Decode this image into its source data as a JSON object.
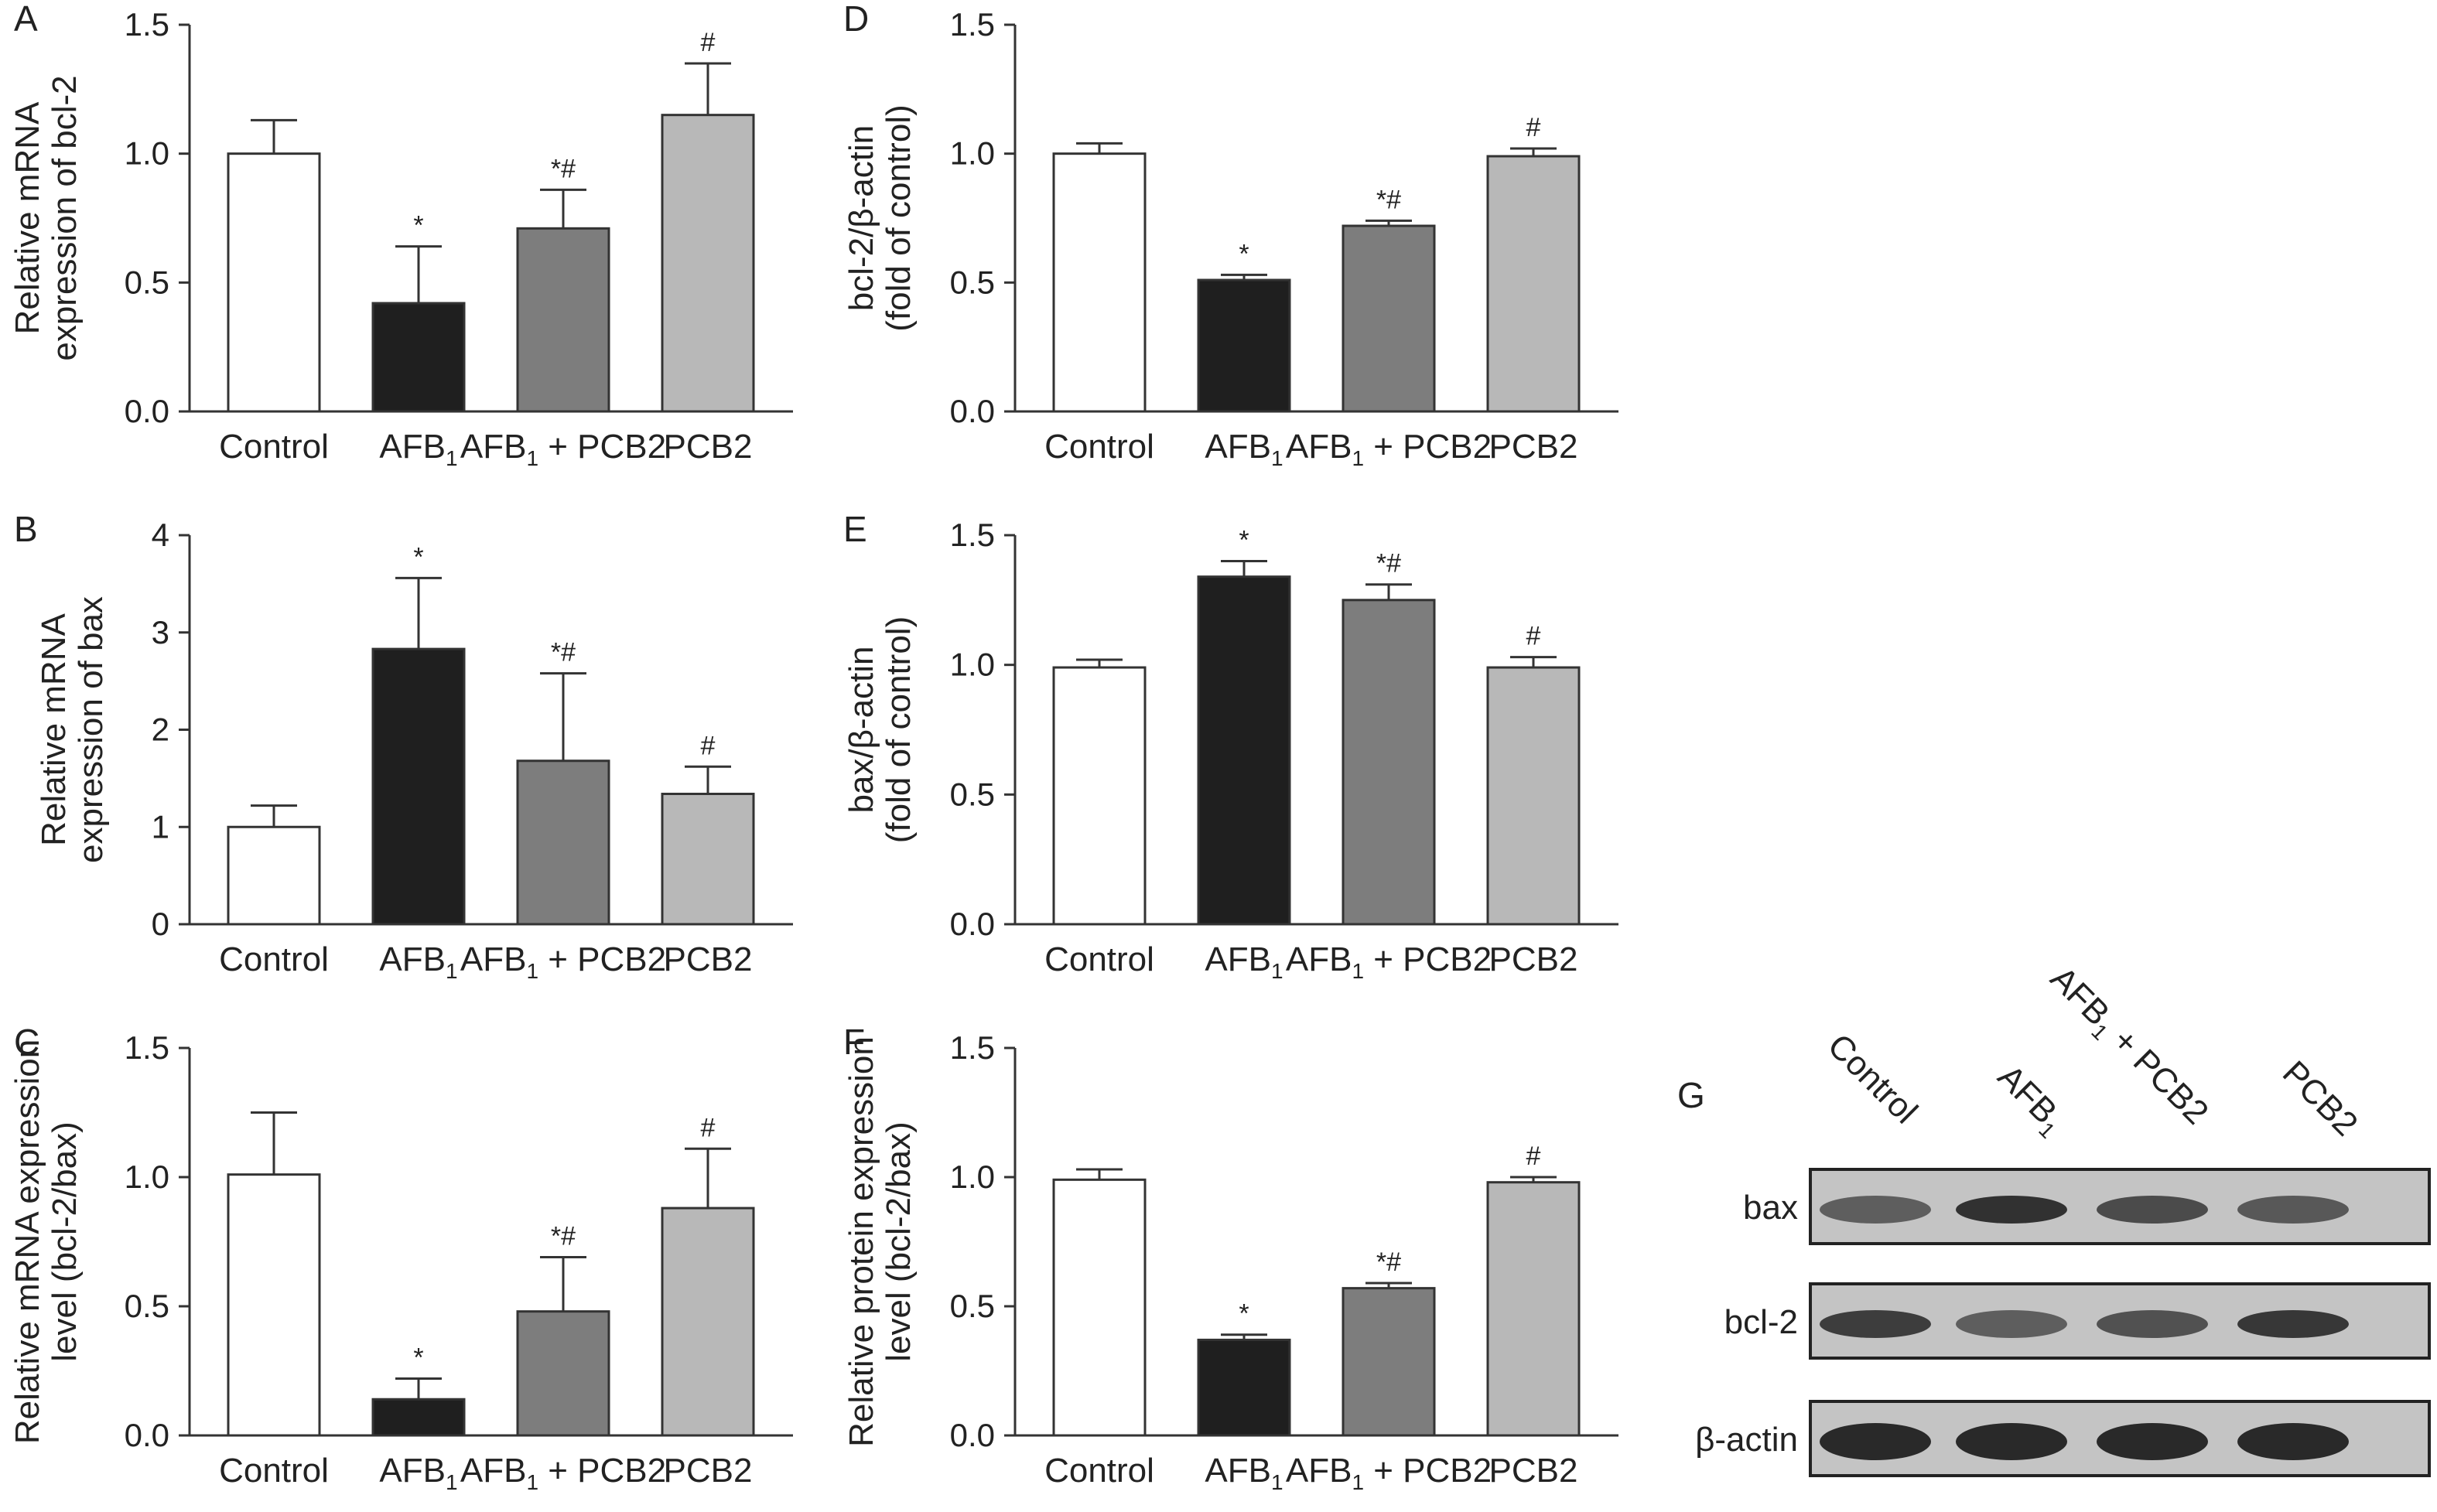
{
  "colors": {
    "Control": "#ffffff",
    "AFB1": "#1f1f1f",
    "AFB1 + PCB2": "#7d7d7d",
    "PCB2": "#b8b8b8",
    "stroke": "#333333"
  },
  "chart_data": [
    {
      "id": "A",
      "panel_label": "A",
      "type": "bar",
      "ylabel_lines": [
        "Relative mRNA",
        "expression of bcl-2"
      ],
      "categories": [
        "Control",
        "AFB1",
        "AFB1 + PCB2",
        "PCB2"
      ],
      "values": [
        1.0,
        0.42,
        0.71,
        1.15
      ],
      "errors": [
        0.13,
        0.22,
        0.15,
        0.2
      ],
      "significance": [
        "",
        "*",
        "*#",
        "#"
      ],
      "ylim": [
        0,
        1.5
      ],
      "yticks": [
        "0.0",
        "0.5",
        "1.0",
        "1.5"
      ]
    },
    {
      "id": "B",
      "panel_label": "B",
      "type": "bar",
      "ylabel_lines": [
        "Relative mRNA",
        "expression of bax"
      ],
      "categories": [
        "Control",
        "AFB1",
        "AFB1 + PCB2",
        "PCB2"
      ],
      "values": [
        1.0,
        2.83,
        1.68,
        1.34
      ],
      "errors": [
        0.22,
        0.73,
        0.9,
        0.28
      ],
      "significance": [
        "",
        "*",
        "*#",
        "#"
      ],
      "ylim": [
        0,
        4
      ],
      "yticks": [
        "0",
        "1",
        "2",
        "3",
        "4"
      ]
    },
    {
      "id": "C",
      "panel_label": "C",
      "type": "bar",
      "ylabel_lines": [
        "Relative mRNA expression",
        "level (bcl-2/bax)"
      ],
      "categories": [
        "Control",
        "AFB1",
        "AFB1 + PCB2",
        "PCB2"
      ],
      "values": [
        1.01,
        0.14,
        0.48,
        0.88
      ],
      "errors": [
        0.24,
        0.08,
        0.21,
        0.23
      ],
      "significance": [
        "",
        "*",
        "*#",
        "#"
      ],
      "ylim": [
        0,
        1.5
      ],
      "yticks": [
        "0.0",
        "0.5",
        "1.0",
        "1.5"
      ]
    },
    {
      "id": "D",
      "panel_label": "D",
      "type": "bar",
      "ylabel_lines": [
        "bcl-2/β-actin",
        "(fold of control)"
      ],
      "categories": [
        "Control",
        "AFB1",
        "AFB1 + PCB2",
        "PCB2"
      ],
      "values": [
        1.0,
        0.51,
        0.72,
        0.99
      ],
      "errors": [
        0.04,
        0.02,
        0.02,
        0.03
      ],
      "significance": [
        "",
        "*",
        "*#",
        "#"
      ],
      "ylim": [
        0,
        1.5
      ],
      "yticks": [
        "0.0",
        "0.5",
        "1.0",
        "1.5"
      ]
    },
    {
      "id": "E",
      "panel_label": "E",
      "type": "bar",
      "ylabel_lines": [
        "bax/β-actin",
        "(fold of control)"
      ],
      "categories": [
        "Control",
        "AFB1",
        "AFB1 + PCB2",
        "PCB2"
      ],
      "values": [
        0.99,
        1.34,
        1.25,
        0.99
      ],
      "errors": [
        0.03,
        0.06,
        0.06,
        0.04
      ],
      "significance": [
        "",
        "*",
        "*#",
        "#"
      ],
      "ylim": [
        0,
        1.5
      ],
      "yticks": [
        "0.0",
        "0.5",
        "1.0",
        "1.5"
      ]
    },
    {
      "id": "F",
      "panel_label": "F",
      "type": "bar",
      "ylabel_lines": [
        "Relative protein expression",
        "level (bcl-2/bax)"
      ],
      "categories": [
        "Control",
        "AFB1",
        "AFB1 + PCB2",
        "PCB2"
      ],
      "values": [
        0.99,
        0.37,
        0.57,
        0.98
      ],
      "errors": [
        0.04,
        0.02,
        0.02,
        0.02
      ],
      "significance": [
        "",
        "*",
        "*#",
        "#"
      ],
      "ylim": [
        0,
        1.5
      ],
      "yticks": [
        "0.0",
        "0.5",
        "1.0",
        "1.5"
      ]
    }
  ],
  "blot": {
    "panel_label": "G",
    "lanes": [
      "Control",
      "AFB1",
      "AFB1 + PCB2",
      "PCB2"
    ],
    "rows": [
      "bax",
      "bcl-2",
      "β-actin"
    ]
  }
}
